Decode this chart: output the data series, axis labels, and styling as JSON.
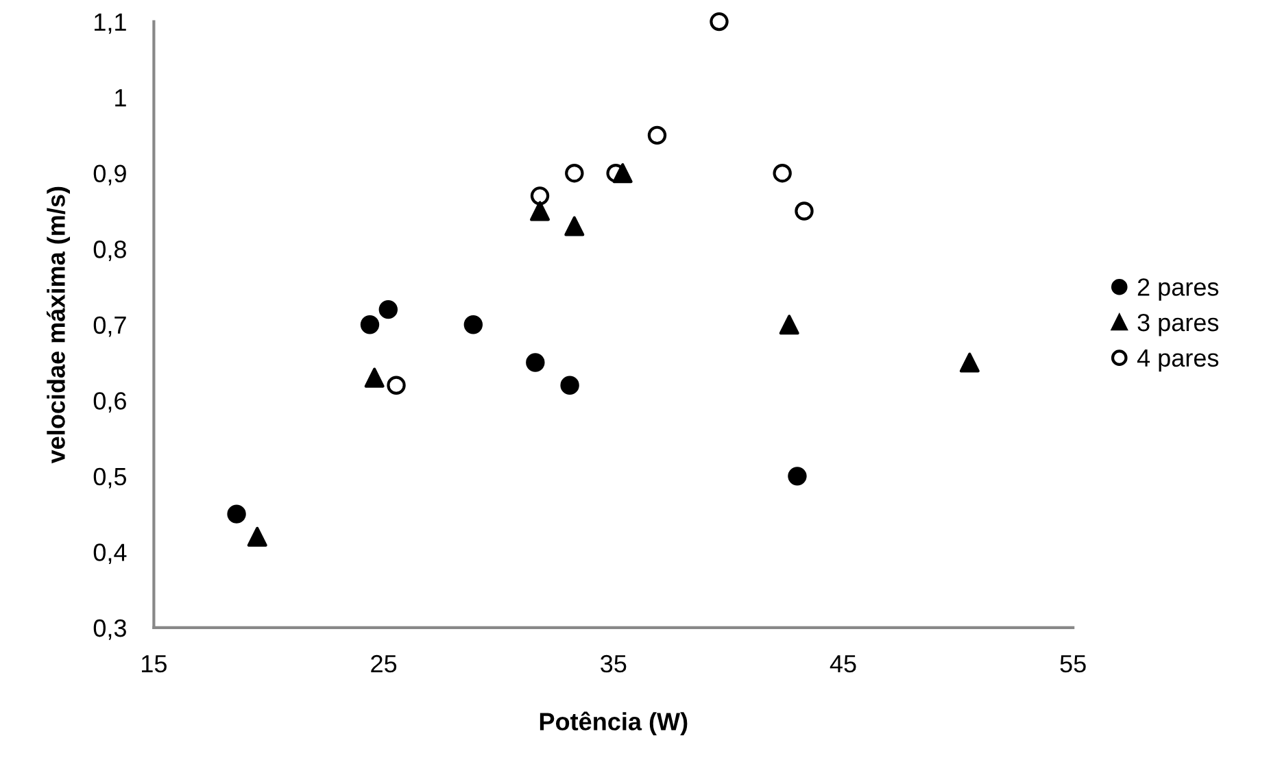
{
  "chart_data": {
    "type": "scatter",
    "xlabel": "Potência (W)",
    "ylabel": "velocidae máxima (m/s)",
    "xlim": [
      15,
      55
    ],
    "xticks": [
      15,
      25,
      35,
      45,
      55
    ],
    "ylim": [
      0.3,
      1.1
    ],
    "yticks": [
      {
        "value": 0.3,
        "label": "0,3"
      },
      {
        "value": 0.4,
        "label": "0,4"
      },
      {
        "value": 0.5,
        "label": "0,5"
      },
      {
        "value": 0.6,
        "label": "0,6"
      },
      {
        "value": 0.7,
        "label": "0,7"
      },
      {
        "value": 0.8,
        "label": "0,8"
      },
      {
        "value": 0.9,
        "label": "0,9"
      },
      {
        "value": 1.0,
        "label": "1"
      },
      {
        "value": 1.1,
        "label": "1,1"
      }
    ],
    "grid": false,
    "legend": "right",
    "series": [
      {
        "name": "2 pares",
        "color": "#000000",
        "marker": "circle",
        "x": [
          18.6,
          24.4,
          25.2,
          28.9,
          31.6,
          33.1,
          43.0
        ],
        "values": [
          0.45,
          0.7,
          0.72,
          0.7,
          0.65,
          0.62,
          0.5
        ]
      },
      {
        "name": "3 pares",
        "color": "#000000",
        "marker": "triangle",
        "x": [
          19.5,
          24.6,
          31.8,
          33.3,
          35.4,
          42.65,
          50.5
        ],
        "values": [
          0.42,
          0.63,
          0.85,
          0.83,
          0.9,
          0.7,
          0.65
        ]
      },
      {
        "name": "4 pares",
        "color": "#ffffff",
        "marker": "circle",
        "x": [
          25.55,
          31.8,
          33.3,
          35.1,
          36.9,
          39.6,
          42.35,
          43.3
        ],
        "values": [
          0.62,
          0.87,
          0.9,
          0.9,
          0.95,
          1.1,
          0.9,
          0.85
        ]
      }
    ]
  }
}
